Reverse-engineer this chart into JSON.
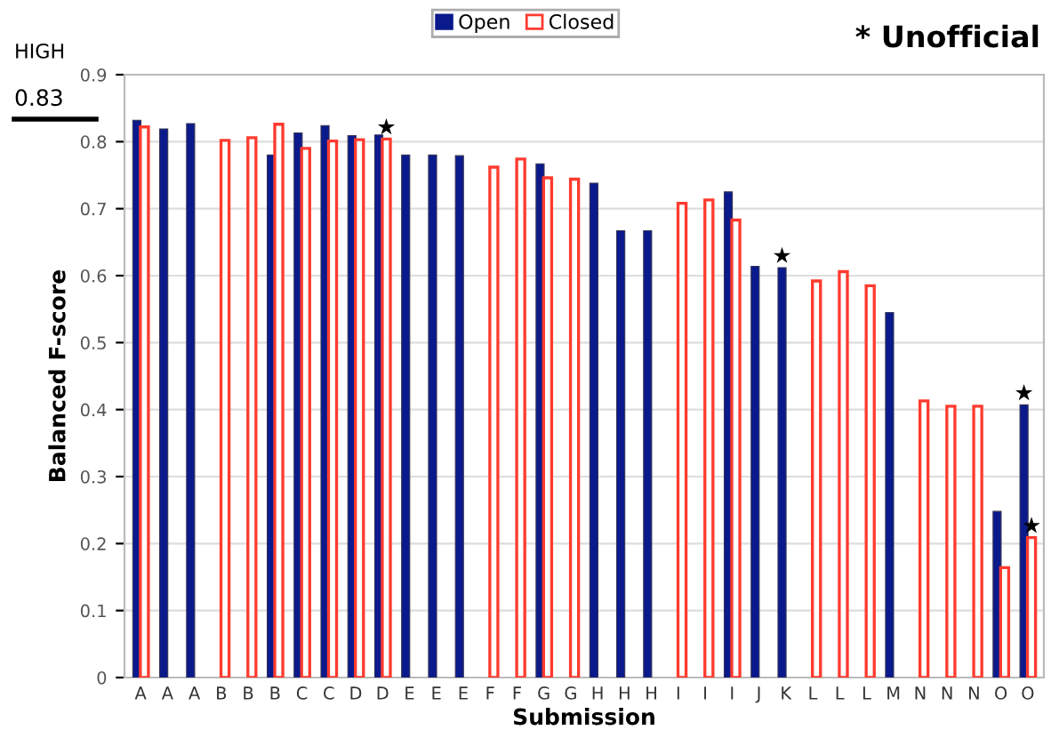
{
  "chart_data": {
    "type": "bar",
    "xlabel": "Submission",
    "ylabel": "Balanced F-score",
    "categories": [
      "A",
      "A",
      "A",
      "B",
      "B",
      "B",
      "C",
      "C",
      "D",
      "D",
      "E",
      "E",
      "E",
      "F",
      "F",
      "G",
      "G",
      "H",
      "H",
      "H",
      "I",
      "I",
      "I",
      "J",
      "K",
      "L",
      "L",
      "L",
      "M",
      "N",
      "N",
      "N",
      "O",
      "O"
    ],
    "series": [
      {
        "name": "Open",
        "color": "#0a1a8c",
        "values": [
          0.832,
          0.819,
          0.827,
          null,
          null,
          0.78,
          0.813,
          0.824,
          0.809,
          0.81,
          0.78,
          0.78,
          0.779,
          null,
          null,
          0.767,
          null,
          0.738,
          0.667,
          0.667,
          null,
          null,
          0.725,
          0.614,
          0.612,
          null,
          null,
          null,
          0.545,
          null,
          null,
          null,
          0.248,
          0.407
        ],
        "value_labels": [
          null,
          null,
          null,
          null,
          null,
          null,
          null,
          null,
          null,
          null,
          null,
          null,
          null,
          null,
          null,
          null,
          null,
          null,
          null,
          null,
          null,
          null,
          null,
          null,
          "★",
          null,
          null,
          null,
          null,
          null,
          null,
          null,
          null,
          "★"
        ]
      },
      {
        "name": "Closed",
        "color": "#ff3b2f",
        "values": [
          0.822,
          null,
          null,
          0.802,
          0.806,
          0.826,
          0.79,
          0.801,
          0.803,
          0.804,
          null,
          null,
          null,
          0.762,
          0.774,
          0.746,
          0.744,
          null,
          null,
          null,
          0.708,
          0.713,
          0.683,
          null,
          null,
          0.592,
          0.606,
          0.585,
          null,
          0.413,
          0.405,
          0.405,
          0.164,
          0.209
        ],
        "value_labels": [
          null,
          null,
          null,
          null,
          null,
          null,
          null,
          null,
          null,
          "★",
          null,
          null,
          null,
          null,
          null,
          null,
          null,
          null,
          null,
          null,
          null,
          null,
          null,
          null,
          null,
          null,
          null,
          null,
          null,
          null,
          null,
          null,
          null,
          "★"
        ]
      }
    ],
    "ylim": [
      0,
      0.9
    ],
    "yticks": [
      0,
      0.1,
      0.2,
      0.3,
      0.4,
      0.5,
      0.6,
      0.7,
      0.8,
      0.9
    ],
    "grid": "y",
    "legend": "top",
    "annotations": [
      "HIGH",
      "0.83",
      "* Unofficial"
    ]
  }
}
